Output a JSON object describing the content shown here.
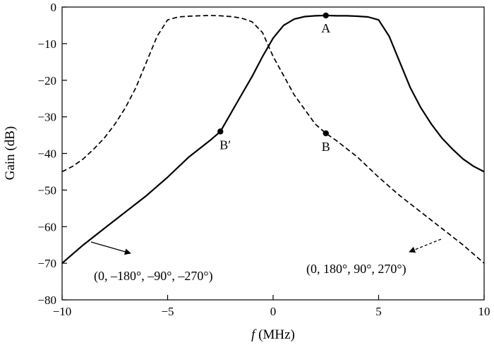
{
  "chart_data": {
    "type": "line",
    "title": "",
    "xlabel_italic": "f",
    "xlabel_rest": " (MHz)",
    "ylabel": "Gain (dB)",
    "xlim": [
      -10,
      10
    ],
    "ylim": [
      -80,
      0
    ],
    "xticks": [
      -10,
      -5,
      0,
      5,
      10
    ],
    "yticks": [
      0,
      -10,
      -20,
      -30,
      -40,
      -50,
      -60,
      -70,
      -80
    ],
    "xtick_labels": [
      "−10",
      "−5",
      "0",
      "5",
      "10"
    ],
    "ytick_labels": [
      "0",
      "−10",
      "−20",
      "−30",
      "−40",
      "−50",
      "−60",
      "−70",
      "−80"
    ],
    "grid": false,
    "series": [
      {
        "style": "solid",
        "color": "#000000",
        "x": [
          -10,
          -9,
          -8,
          -7,
          -6,
          -5,
          -4,
          -3,
          -2.5,
          -2,
          -1.5,
          -1,
          -0.5,
          0,
          0.5,
          1,
          1.5,
          2,
          2.5,
          3,
          3.5,
          4,
          4.5,
          5,
          5.5,
          6,
          6.5,
          7,
          7.5,
          8,
          8.5,
          9,
          9.5,
          10
        ],
        "y": [
          -70,
          -65,
          -60.5,
          -56,
          -51.5,
          -46.5,
          -41,
          -36.5,
          -34,
          -29,
          -24,
          -19,
          -13.5,
          -8.5,
          -5,
          -3.3,
          -2.6,
          -2.4,
          -2.3,
          -2.4,
          -2.4,
          -2.5,
          -2.7,
          -3.5,
          -8,
          -15,
          -22,
          -27.5,
          -32,
          -35.8,
          -38.8,
          -41.5,
          -43.5,
          -45
        ]
      },
      {
        "style": "dashed",
        "color": "#000000",
        "x": [
          -10,
          -9.5,
          -9,
          -8.5,
          -8,
          -7.5,
          -7,
          -6.5,
          -6,
          -5.5,
          -5,
          -4.5,
          -4,
          -3.5,
          -3,
          -2.5,
          -2,
          -1.5,
          -1,
          -0.5,
          0,
          1,
          2,
          2.5,
          3,
          4,
          5,
          6,
          7,
          8,
          9,
          10
        ],
        "y": [
          -45,
          -43.5,
          -41.5,
          -38.8,
          -35.8,
          -32,
          -27.5,
          -22,
          -15,
          -8,
          -3.5,
          -2.7,
          -2.5,
          -2.4,
          -2.3,
          -2.4,
          -2.6,
          -3,
          -4,
          -7,
          -13.5,
          -24,
          -32,
          -34.5,
          -36.5,
          -41,
          -46.5,
          -51.5,
          -56,
          -60.5,
          -65,
          -70
        ]
      }
    ],
    "points": [
      {
        "label": "A",
        "x": 2.5,
        "y": -2.3
      },
      {
        "label": "B′",
        "x": -2.5,
        "y": -34
      },
      {
        "label": "B",
        "x": 2.5,
        "y": -34.5
      }
    ],
    "annotations": [
      {
        "text": "(0, –180°, –90°, –270°)",
        "points_to": "solid"
      },
      {
        "text": "(0, 180°, 90°, 270°)",
        "points_to": "dashed"
      }
    ]
  }
}
